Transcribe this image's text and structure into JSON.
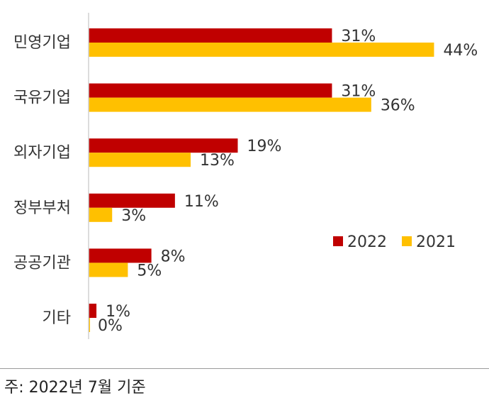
{
  "chart_data": {
    "type": "bar",
    "orientation": "horizontal",
    "categories": [
      "민영기업",
      "국유기업",
      "외자기업",
      "정부부처",
      "공공기관",
      "기타"
    ],
    "series": [
      {
        "name": "2022",
        "color": "#C00000",
        "values": [
          31,
          31,
          19,
          11,
          8,
          1
        ]
      },
      {
        "name": "2021",
        "color": "#FFC000",
        "values": [
          44,
          36,
          13,
          3,
          5,
          0
        ]
      }
    ],
    "value_suffix": "%",
    "xlim": [
      0,
      51
    ],
    "legend_position": "right-middle",
    "grid": false
  },
  "footnote": "주: 2022년 7월 기준"
}
